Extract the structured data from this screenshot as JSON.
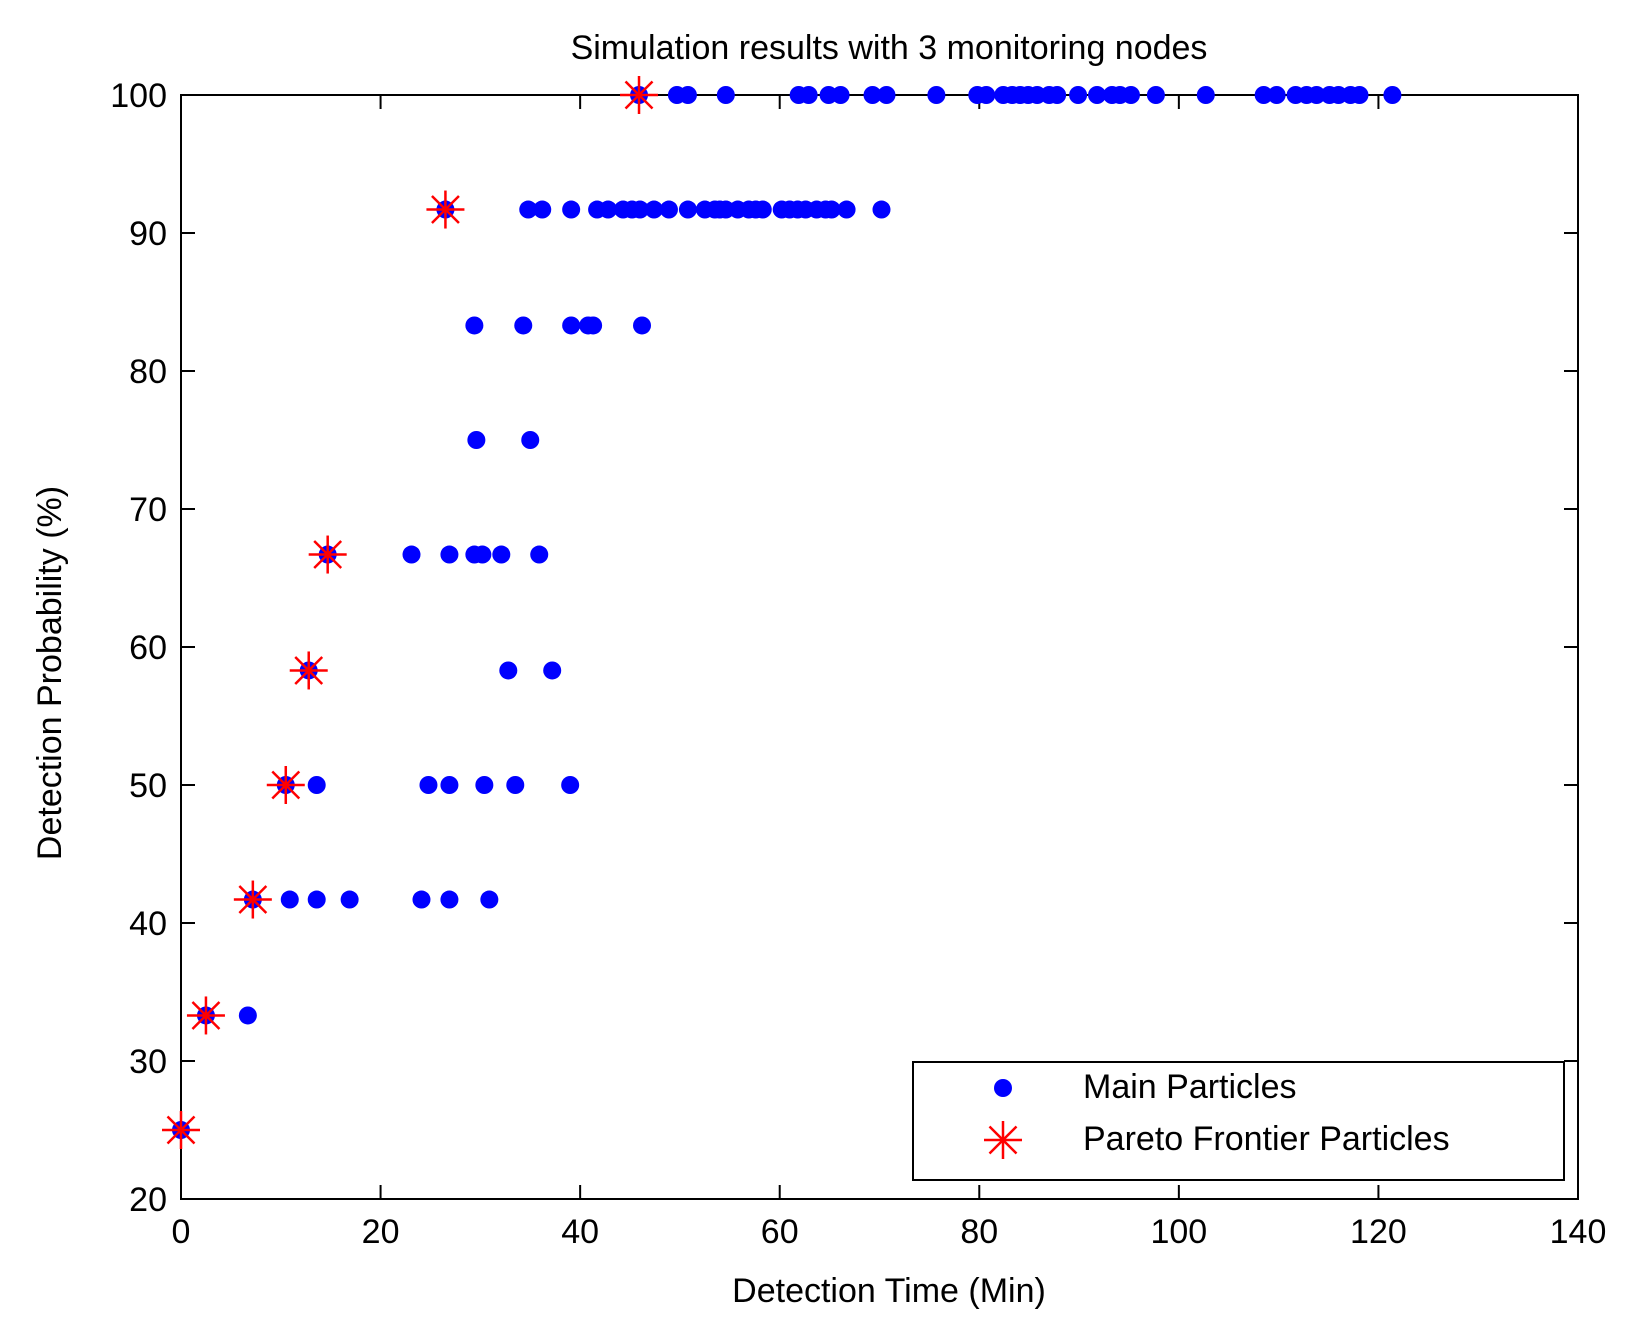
{
  "chart_data": {
    "type": "scatter",
    "title": "Simulation results with 3 monitoring nodes",
    "xlabel": "Detection Time (Min)",
    "ylabel": "Detection Probability (%)",
    "xlim": [
      0,
      140
    ],
    "ylim": [
      20,
      100
    ],
    "xticks": [
      0,
      20,
      40,
      60,
      80,
      100,
      120,
      140
    ],
    "yticks": [
      20,
      30,
      40,
      50,
      60,
      70,
      80,
      90,
      100
    ],
    "xtick_labels": [
      "0",
      "20",
      "40",
      "60",
      "80",
      "100",
      "120",
      "140"
    ],
    "ytick_labels": [
      "20",
      "30",
      "40",
      "50",
      "60",
      "70",
      "80",
      "90",
      "100"
    ],
    "grid": false,
    "legend_position": "bottom-right",
    "series": [
      {
        "name": "Main Particles",
        "marker": "dot",
        "color": "#0000ff",
        "points": [
          [
            0,
            25
          ],
          [
            2.5,
            33.3
          ],
          [
            6.7,
            33.3
          ],
          [
            7.2,
            41.7
          ],
          [
            10.9,
            41.7
          ],
          [
            13.6,
            41.7
          ],
          [
            16.9,
            41.7
          ],
          [
            24.1,
            41.7
          ],
          [
            26.9,
            41.7
          ],
          [
            30.9,
            41.7
          ],
          [
            10.5,
            50
          ],
          [
            13.6,
            50
          ],
          [
            24.8,
            50
          ],
          [
            26.9,
            50
          ],
          [
            30.4,
            50
          ],
          [
            33.5,
            50
          ],
          [
            39.0,
            50
          ],
          [
            12.8,
            58.3
          ],
          [
            32.8,
            58.3
          ],
          [
            37.2,
            58.3
          ],
          [
            14.7,
            66.7
          ],
          [
            23.1,
            66.7
          ],
          [
            26.9,
            66.7
          ],
          [
            29.4,
            66.7
          ],
          [
            30.2,
            66.7
          ],
          [
            32.1,
            66.7
          ],
          [
            35.9,
            66.7
          ],
          [
            29.6,
            75
          ],
          [
            35.0,
            75
          ],
          [
            29.4,
            83.3
          ],
          [
            34.3,
            83.3
          ],
          [
            39.1,
            83.3
          ],
          [
            40.8,
            83.3
          ],
          [
            41.3,
            83.3
          ],
          [
            46.2,
            83.3
          ],
          [
            26.5,
            91.7
          ],
          [
            34.8,
            91.7
          ],
          [
            36.2,
            91.7
          ],
          [
            39.1,
            91.7
          ],
          [
            41.7,
            91.7
          ],
          [
            42.8,
            91.7
          ],
          [
            44.3,
            91.7
          ],
          [
            45.2,
            91.7
          ],
          [
            46.0,
            91.7
          ],
          [
            47.4,
            91.7
          ],
          [
            48.9,
            91.7
          ],
          [
            50.8,
            91.7
          ],
          [
            52.5,
            91.7
          ],
          [
            53.5,
            91.7
          ],
          [
            54.0,
            91.7
          ],
          [
            54.6,
            91.7
          ],
          [
            55.8,
            91.7
          ],
          [
            56.9,
            91.7
          ],
          [
            57.6,
            91.7
          ],
          [
            58.3,
            91.7
          ],
          [
            60.2,
            91.7
          ],
          [
            61.0,
            91.7
          ],
          [
            61.8,
            91.7
          ],
          [
            62.6,
            91.7
          ],
          [
            63.7,
            91.7
          ],
          [
            64.6,
            91.7
          ],
          [
            65.2,
            91.7
          ],
          [
            66.7,
            91.7
          ],
          [
            70.2,
            91.7
          ],
          [
            45.9,
            100
          ],
          [
            49.7,
            100
          ],
          [
            50.8,
            100
          ],
          [
            54.6,
            100
          ],
          [
            61.9,
            100
          ],
          [
            62.9,
            100
          ],
          [
            64.9,
            100
          ],
          [
            66.1,
            100
          ],
          [
            69.3,
            100
          ],
          [
            70.7,
            100
          ],
          [
            75.7,
            100
          ],
          [
            79.8,
            100
          ],
          [
            80.7,
            100
          ],
          [
            82.4,
            100
          ],
          [
            83.3,
            100
          ],
          [
            84.1,
            100
          ],
          [
            84.9,
            100
          ],
          [
            85.8,
            100
          ],
          [
            87.0,
            100
          ],
          [
            87.8,
            100
          ],
          [
            89.9,
            100
          ],
          [
            91.8,
            100
          ],
          [
            93.3,
            100
          ],
          [
            94.1,
            100
          ],
          [
            95.2,
            100
          ],
          [
            97.7,
            100
          ],
          [
            102.7,
            100
          ],
          [
            108.5,
            100
          ],
          [
            109.8,
            100
          ],
          [
            111.7,
            100
          ],
          [
            112.8,
            100
          ],
          [
            113.8,
            100
          ],
          [
            115.1,
            100
          ],
          [
            116.0,
            100
          ],
          [
            117.2,
            100
          ],
          [
            118.1,
            100
          ],
          [
            121.4,
            100
          ]
        ]
      },
      {
        "name": "Pareto Frontier Particles",
        "marker": "star",
        "color": "#ff0000",
        "points": [
          [
            0,
            25
          ],
          [
            2.5,
            33.3
          ],
          [
            7.2,
            41.7
          ],
          [
            10.5,
            50
          ],
          [
            12.8,
            58.3
          ],
          [
            14.7,
            66.7
          ],
          [
            26.5,
            91.7
          ],
          [
            45.9,
            100
          ]
        ]
      }
    ]
  }
}
